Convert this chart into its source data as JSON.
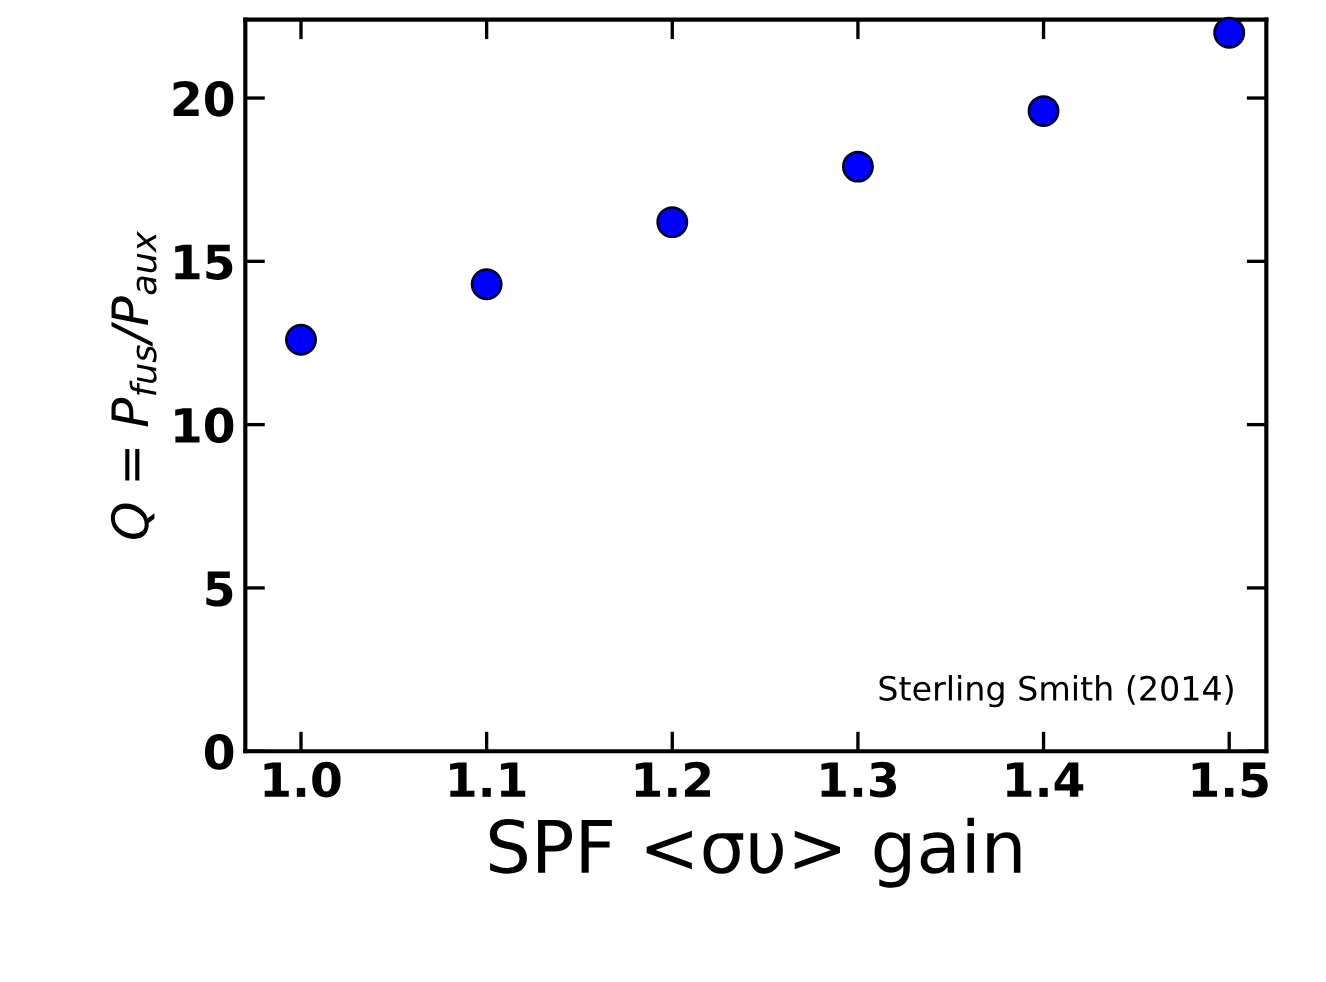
{
  "chart_data": {
    "type": "scatter",
    "x": [
      1.0,
      1.1,
      1.2,
      1.3,
      1.4,
      1.5
    ],
    "values": [
      12.6,
      14.3,
      16.2,
      17.9,
      19.6,
      22.0
    ],
    "color": "#0000ff",
    "marker": "circle",
    "xlabel": "SPF <συ> gain",
    "ylabel": "Q = P$_{fus}$/P$_{aux}$",
    "xlim": [
      0.97,
      1.52
    ],
    "xticks": [
      {
        "value": 1.0,
        "label": "1.0"
      },
      1.1,
      1.2,
      1.3,
      1.4,
      1.5
    ],
    "ylim": [
      0,
      22.4
    ],
    "yticks": [
      0,
      5,
      10,
      15,
      20
    ],
    "grid": false,
    "annotations": [
      "Sterling Smith (2014)"
    ]
  }
}
